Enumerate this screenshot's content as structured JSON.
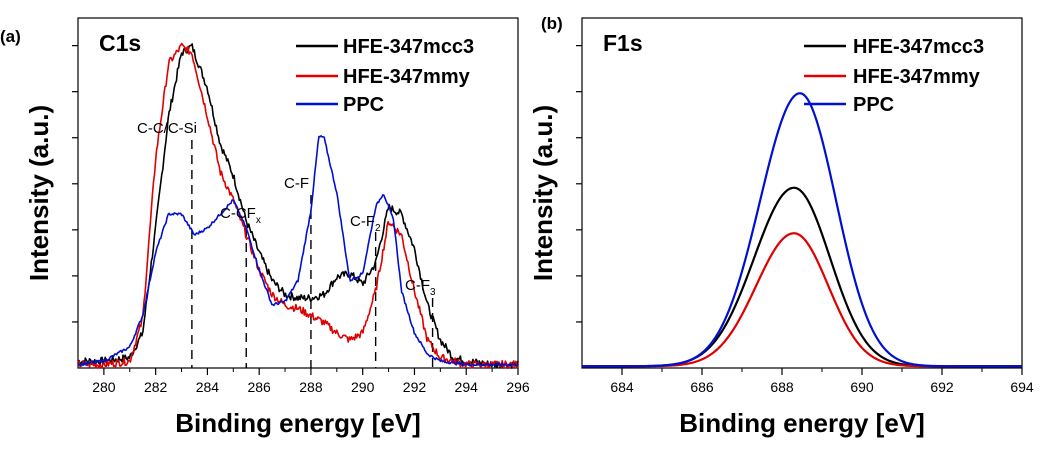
{
  "chart_data": [
    {
      "type": "line",
      "panel_label": "(a)",
      "title": "C1s",
      "xlabel": "Binding energy [eV]",
      "ylabel": "Intensity (a.u.)",
      "xlim": [
        279,
        296
      ],
      "ylim": [
        0,
        100
      ],
      "x_ticks": [
        280,
        282,
        284,
        286,
        288,
        290,
        292,
        294,
        296
      ],
      "legend": [
        "HFE-347mcc3",
        "HFE-347mmy",
        "PPC"
      ],
      "annotations": [
        {
          "text": "C-C/C-Si",
          "x": 283.4
        },
        {
          "text": "C-CF",
          "sub": "x",
          "x": 285.5
        },
        {
          "text": "C-F",
          "x": 288.0
        },
        {
          "text": "C-F",
          "sub": "2",
          "x": 290.5
        },
        {
          "text": "C-F",
          "sub": "3",
          "x": 292.7
        }
      ],
      "series": [
        {
          "name": "HFE-347mcc3",
          "color": "#000000",
          "x": [
            279,
            280,
            281,
            281.5,
            282,
            282.5,
            283,
            283.4,
            284,
            284.5,
            285,
            285.5,
            286,
            286.5,
            287,
            287.5,
            288,
            288.5,
            289,
            289.5,
            290,
            290.5,
            291,
            291.5,
            292,
            292.5,
            293,
            293.5,
            294,
            295,
            296
          ],
          "y": [
            2,
            2,
            3,
            10,
            40,
            72,
            90,
            92,
            80,
            64,
            55,
            42,
            33,
            25,
            21,
            20,
            20,
            21,
            26,
            27,
            24,
            30,
            46,
            44,
            34,
            18,
            8,
            3,
            2,
            1,
            1
          ]
        },
        {
          "name": "HFE-347mmy",
          "color": "#e00000",
          "x": [
            279,
            280,
            281,
            281.5,
            282,
            282.5,
            283,
            283.4,
            284,
            284.5,
            285,
            285.5,
            286,
            286.5,
            287,
            287.5,
            288,
            288.5,
            289,
            289.5,
            290,
            290.5,
            291,
            291.5,
            292,
            292.5,
            293,
            294,
            295,
            296
          ],
          "y": [
            1,
            1,
            2,
            14,
            60,
            87,
            92,
            90,
            72,
            56,
            48,
            38,
            28,
            21,
            18,
            17,
            15,
            13,
            10,
            8,
            10,
            22,
            42,
            38,
            22,
            8,
            3,
            1,
            1,
            1
          ]
        },
        {
          "name": "PPC",
          "color": "#0010d0",
          "x": [
            279,
            280,
            281,
            281.5,
            282,
            282.5,
            283,
            283.5,
            284,
            284.5,
            285,
            285.5,
            286,
            286.5,
            287,
            287.5,
            288,
            288.3,
            288.5,
            289,
            289.5,
            290,
            290.5,
            290.8,
            291.2,
            291.5,
            292,
            292.5,
            293,
            294,
            295,
            296
          ],
          "y": [
            1,
            2,
            6,
            15,
            33,
            44,
            44,
            38,
            40,
            44,
            48,
            40,
            28,
            18,
            19,
            25,
            45,
            66,
            66,
            50,
            25,
            27,
            46,
            50,
            42,
            22,
            10,
            4,
            2,
            1,
            1,
            1
          ]
        }
      ]
    },
    {
      "type": "line",
      "panel_label": "(b)",
      "title": "F1s",
      "xlabel": "Binding energy [eV]",
      "ylabel": "Intensity (a.u.)",
      "xlim": [
        683,
        694
      ],
      "ylim": [
        0,
        100
      ],
      "x_ticks": [
        684,
        686,
        688,
        690,
        692,
        694
      ],
      "legend": [
        "HFE-347mcc3",
        "HFE-347mmy",
        "PPC"
      ],
      "series": [
        {
          "name": "HFE-347mcc3",
          "color": "#000000",
          "peak_center": 688.3,
          "peak_height": 51,
          "sigma": 0.95
        },
        {
          "name": "HFE-347mmy",
          "color": "#e00000",
          "peak_center": 688.3,
          "peak_height": 38,
          "sigma": 0.9
        },
        {
          "name": "PPC",
          "color": "#0010d0",
          "peak_center": 688.45,
          "peak_height": 78,
          "sigma": 0.95
        }
      ]
    }
  ]
}
